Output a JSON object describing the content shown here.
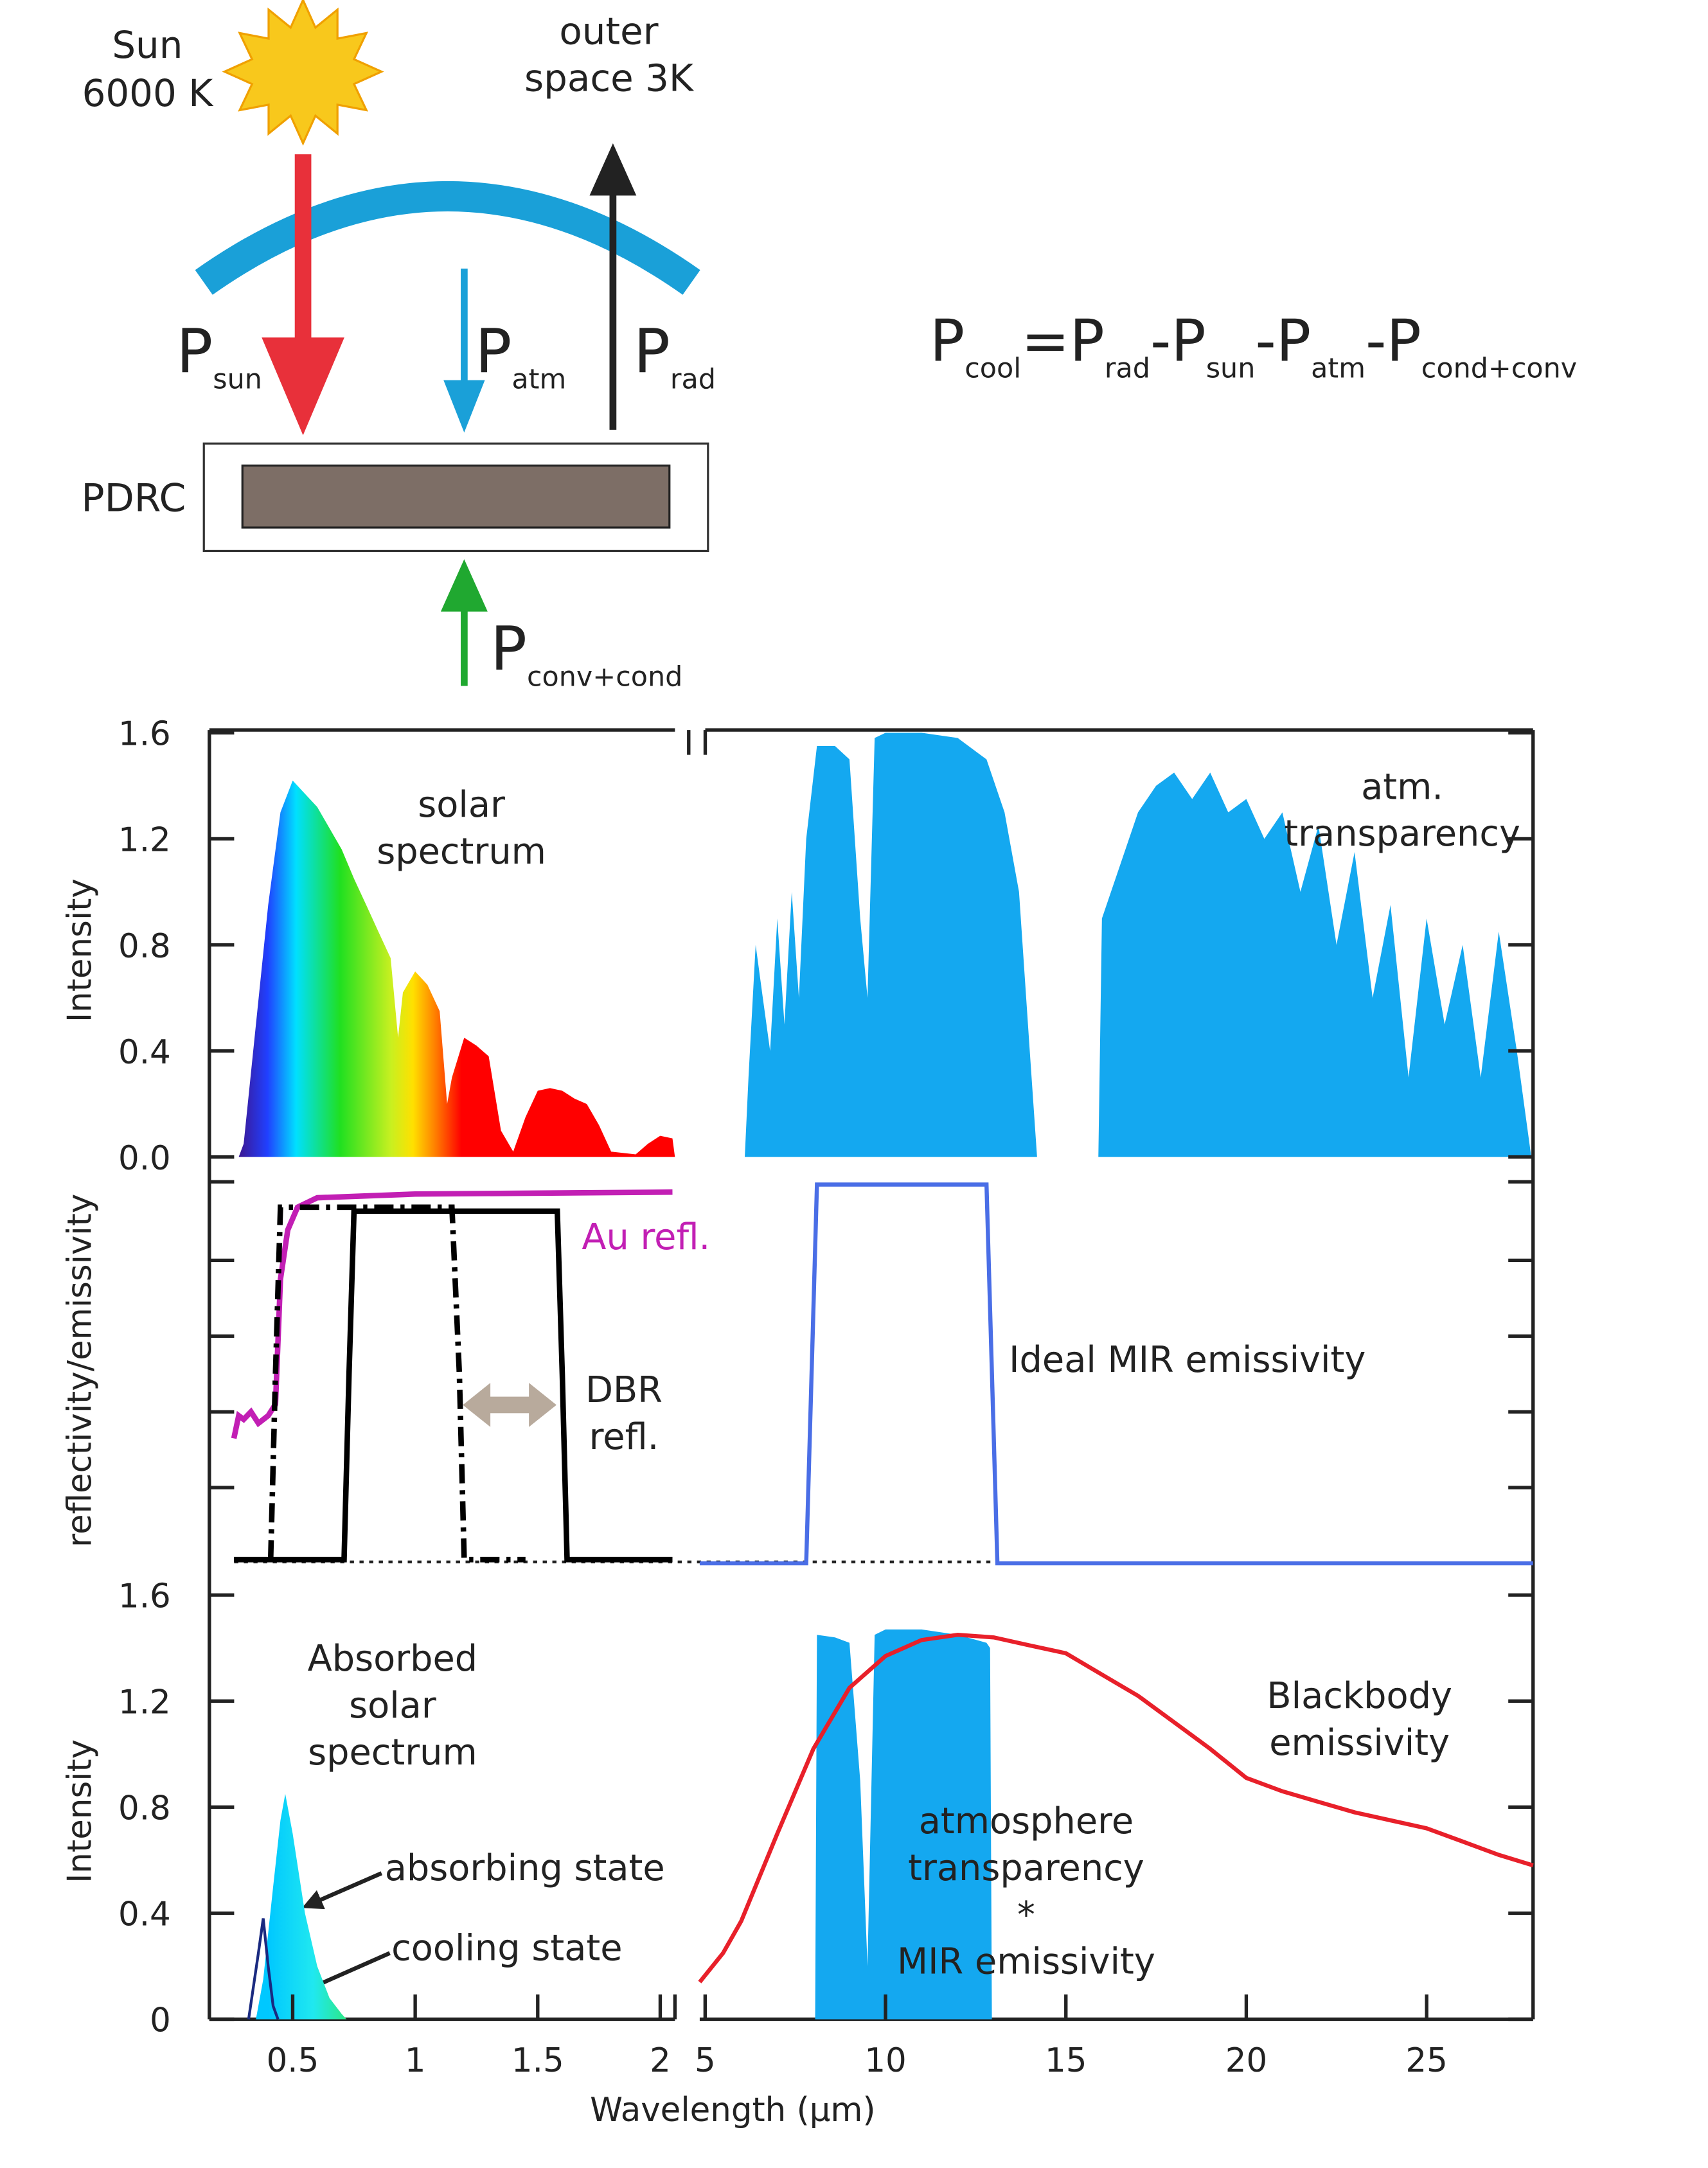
{
  "diagram": {
    "sun": [
      "Sun",
      "6000 K"
    ],
    "space": [
      "outer",
      "space 3K"
    ],
    "fluxes": [
      {
        "symbol": "P",
        "sub": "sun"
      },
      {
        "symbol": "P",
        "sub": "atm"
      },
      {
        "symbol": "P",
        "sub": "rad"
      },
      {
        "symbol": "P",
        "sub": "conv+cond"
      }
    ],
    "device": "PDRC",
    "equation": {
      "terms": [
        {
          "symbol": "P",
          "sub": "cool"
        },
        {
          "symbol": "P",
          "sub": "rad"
        },
        {
          "symbol": "P",
          "sub": "sun"
        },
        {
          "symbol": "P",
          "sub": "atm"
        },
        {
          "symbol": "P",
          "sub": "cond+conv"
        }
      ],
      "operators": [
        "=",
        "-",
        "-",
        "-"
      ]
    }
  },
  "chart_data": [
    {
      "type": "area",
      "ylabel": "Intensity",
      "xlim": [
        0.16,
        2.06
      ],
      "x2lim": [
        4.85,
        27.95
      ],
      "ylim": [
        0,
        1.6
      ],
      "yticks": [
        {
          "value": 0,
          "label": "0.0"
        },
        0.4,
        0.8,
        1.2,
        1.6
      ],
      "series": [
        {
          "gradient": true,
          "x": [
            0.28,
            0.3,
            0.35,
            0.4,
            0.45,
            0.5,
            0.55,
            0.6,
            0.65,
            0.7,
            0.75,
            0.8,
            0.85,
            0.9,
            0.93,
            0.95,
            1.0,
            1.05,
            1.1,
            1.13,
            1.15,
            1.2,
            1.25,
            1.3,
            1.35,
            1.4,
            1.45,
            1.5,
            1.55,
            1.6,
            1.65,
            1.7,
            1.75,
            1.8,
            1.9,
            1.95,
            2.0,
            2.05,
            2.06
          ],
          "values": [
            0,
            0.05,
            0.5,
            0.95,
            1.3,
            1.42,
            1.37,
            1.32,
            1.24,
            1.16,
            1.05,
            0.95,
            0.85,
            0.75,
            0.45,
            0.62,
            0.7,
            0.65,
            0.55,
            0.2,
            0.3,
            0.45,
            0.42,
            0.38,
            0.1,
            0.02,
            0.15,
            0.25,
            0.26,
            0.25,
            0.22,
            0.2,
            0.12,
            0.02,
            0.01,
            0.05,
            0.08,
            0.07,
            0
          ]
        },
        {
          "color": "#14a8f0",
          "axis": "x2",
          "x": [
            6.1,
            6.2,
            6.4,
            6.6,
            6.8,
            7.0,
            7.2,
            7.4,
            7.6,
            7.8,
            8.1,
            8.6,
            9.0,
            9.3,
            9.5,
            9.7,
            10,
            11,
            12,
            12.8,
            13.3,
            13.7,
            14.0,
            14.2,
            15.9,
            16.0,
            16.5,
            17,
            17.5,
            18,
            18.5,
            19,
            19.5,
            20,
            20.5,
            21,
            21.5,
            22,
            22.5,
            23,
            23.5,
            24,
            24.5,
            25,
            25.5,
            26,
            26.5,
            27,
            27.5,
            27.9
          ],
          "values": [
            0,
            0.3,
            0.8,
            0.6,
            0.4,
            0.9,
            0.5,
            1.0,
            0.6,
            1.2,
            1.55,
            1.55,
            1.5,
            0.9,
            0.6,
            1.58,
            1.6,
            1.6,
            1.58,
            1.5,
            1.3,
            1.0,
            0.4,
            0,
            0,
            0.9,
            1.1,
            1.3,
            1.4,
            1.45,
            1.35,
            1.45,
            1.3,
            1.35,
            1.2,
            1.3,
            1.0,
            1.25,
            0.8,
            1.15,
            0.6,
            0.95,
            0.3,
            0.9,
            0.5,
            0.8,
            0.3,
            0.85,
            0.4,
            0
          ]
        }
      ],
      "annotations": [
        {
          "lines": [
            "solar",
            "spectrum"
          ]
        },
        {
          "lines": [
            "atm.",
            "transparency"
          ]
        }
      ]
    },
    {
      "type": "line",
      "ylabel": "reflectivity/emissivity",
      "xlim": [
        0.16,
        2.06
      ],
      "x2lim": [
        4.85,
        27.95
      ],
      "ylim": [
        0,
        1
      ],
      "series": [
        {
          "color": "#c21fb4",
          "width": 4,
          "x": [
            0.26,
            0.28,
            0.3,
            0.33,
            0.36,
            0.4,
            0.43,
            0.45,
            0.48,
            0.52,
            0.6,
            1.0,
            2.05
          ],
          "values": [
            0.33,
            0.39,
            0.38,
            0.4,
            0.37,
            0.39,
            0.42,
            0.75,
            0.88,
            0.94,
            0.965,
            0.975,
            0.98
          ]
        },
        {
          "color": "#000000",
          "width": 4,
          "dash": "dashdot",
          "x": [
            0.41,
            0.43,
            0.45,
            1.15,
            1.18,
            1.2,
            1.45
          ],
          "values": [
            0.01,
            0.5,
            0.94,
            0.94,
            0.5,
            0.01,
            0.01
          ]
        },
        {
          "color": "#000000",
          "width": 4,
          "x": [
            0.26,
            0.71,
            0.73,
            0.75,
            1.58,
            1.6,
            1.62,
            2.05
          ],
          "values": [
            0.01,
            0.01,
            0.5,
            0.93,
            0.93,
            0.5,
            0.01,
            0.01
          ]
        },
        {
          "color": "#4a6ee6",
          "width": 3,
          "axis": "x2",
          "x": [
            4.85,
            7.8,
            8.1,
            12.8,
            13.1,
            27.95
          ],
          "values": [
            0,
            0,
            1,
            1,
            0,
            0
          ]
        }
      ],
      "annotations": [
        {
          "lines": [
            "Au refl."
          ],
          "color": "#c21fb4"
        },
        {
          "lines": [
            "DBR",
            "refl."
          ]
        },
        {
          "lines": [
            "Ideal MIR emissivity"
          ]
        }
      ]
    },
    {
      "type": "area",
      "ylabel": "Intensity",
      "xlabel": "Wavelength (μm)",
      "xlim": [
        0.16,
        2.06
      ],
      "x2lim": [
        4.85,
        27.95
      ],
      "ylim": [
        0,
        1.6
      ],
      "yticks": [
        0,
        0.4,
        0.8,
        1.2,
        1.6
      ],
      "xticks": [
        0.5,
        1,
        1.5,
        2
      ],
      "x2ticks": [
        5,
        10,
        15,
        20,
        25
      ],
      "series": [
        {
          "gradient": true,
          "x": [
            0.35,
            0.38,
            0.42,
            0.45,
            0.47,
            0.5,
            0.55,
            0.6,
            0.65,
            0.7,
            0.72
          ],
          "values": [
            0,
            0.15,
            0.5,
            0.75,
            0.85,
            0.7,
            0.4,
            0.2,
            0.08,
            0.02,
            0
          ]
        },
        {
          "type": "line",
          "color": "#1a2a80",
          "width": 2,
          "x": [
            0.32,
            0.36,
            0.38,
            0.4,
            0.42,
            0.44
          ],
          "values": [
            0,
            0.25,
            0.38,
            0.2,
            0.05,
            0
          ]
        },
        {
          "color": "#14a8f0",
          "axis": "x2",
          "x": [
            8.05,
            8.1,
            8.6,
            9.0,
            9.3,
            9.5,
            9.7,
            10,
            11,
            12,
            12.8,
            12.9,
            12.95
          ],
          "values": [
            0,
            1.45,
            1.44,
            1.42,
            0.9,
            0.2,
            1.45,
            1.47,
            1.47,
            1.45,
            1.42,
            1.4,
            0
          ]
        },
        {
          "type": "line",
          "color": "#e8202a",
          "width": 3,
          "axis": "x2",
          "x": [
            4.85,
            5.5,
            6,
            7,
            8,
            9,
            10,
            11,
            12,
            13,
            14,
            15,
            16,
            17,
            18,
            19,
            20,
            21,
            22,
            23,
            24,
            25,
            26,
            27,
            27.95
          ],
          "values": [
            0.14,
            0.25,
            0.37,
            0.7,
            1.02,
            1.25,
            1.37,
            1.43,
            1.45,
            1.44,
            1.41,
            1.38,
            1.3,
            1.22,
            1.12,
            1.02,
            0.91,
            0.86,
            0.82,
            0.78,
            0.75,
            0.72,
            0.67,
            0.62,
            0.58
          ]
        }
      ],
      "annotations": [
        {
          "lines": [
            "Absorbed",
            "solar",
            "spectrum"
          ]
        },
        {
          "lines": [
            "absorbing state"
          ]
        },
        {
          "lines": [
            "cooling state"
          ]
        },
        {
          "lines": [
            "Blackbody",
            "emissivity"
          ]
        },
        {
          "lines": [
            "atmosphere",
            "transparency",
            "*",
            "MIR emissivity"
          ]
        }
      ]
    }
  ]
}
